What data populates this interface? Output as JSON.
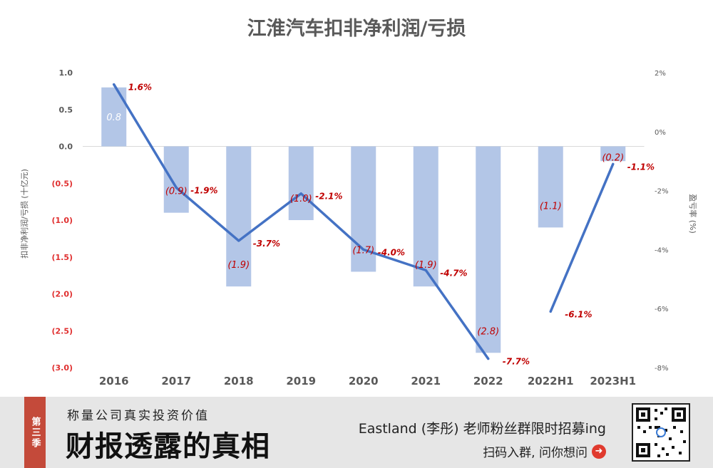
{
  "chart_data": {
    "type": "bar",
    "title": "江淮汽车扣非净利润/亏损",
    "categories": [
      "2016",
      "2017",
      "2018",
      "2019",
      "2020",
      "2021",
      "2022",
      "2022H1",
      "2023H1"
    ],
    "series": [
      {
        "name": "扣非净利润/亏损 (十亿元)",
        "type": "bar",
        "axis": "left",
        "values": [
          0.8,
          -0.9,
          -1.9,
          -1.0,
          -1.7,
          -1.9,
          -2.8,
          -1.1,
          -0.2
        ],
        "labels": [
          "0.8",
          "(0.9)",
          "(1.9)",
          "(1.0)",
          "(1.7)",
          "(1.9)",
          "(2.8)",
          "(1.1)",
          "(0.2)"
        ],
        "color": "#b3c6e7"
      },
      {
        "name": "盈亏率 (%)",
        "type": "line",
        "axis": "right",
        "values": [
          1.6,
          -1.9,
          -3.7,
          -2.1,
          -4.0,
          -4.7,
          -7.7,
          -6.1,
          -1.1
        ],
        "labels": [
          "1.6%",
          "-1.9%",
          "-3.7%",
          "-2.1%",
          "-4.0%",
          "-4.7%",
          "-7.7%",
          "-6.1%",
          "-1.1%"
        ],
        "color": "#4472c4",
        "segments": [
          [
            0,
            6
          ],
          [
            7,
            8
          ]
        ]
      }
    ],
    "ylabel": "扣非净利润/亏损 (十亿元)",
    "y2label": "盈亏率 (%)",
    "ylim": [
      -3.0,
      1.0
    ],
    "y2lim": [
      -8,
      2
    ],
    "yticks": [
      "1.0",
      "0.5",
      "0.0",
      "(0.5)",
      "(1.0)",
      "(1.5)",
      "(2.0)",
      "(2.5)",
      "(3.0)"
    ],
    "y2ticks": [
      "2%",
      "0%",
      "-2%",
      "-4%",
      "-6%",
      "-8%"
    ],
    "negative_tick_color": "#e03030",
    "label_color": "#c00000",
    "grid": false
  },
  "footer": {
    "season_tag": "第三季",
    "subtitle": "称量公司真实投资价值",
    "main_title": "财报透露的真相",
    "recruit": "Eastland (李彤) 老师粉丝群限时招募ing",
    "cta": "扫码入群, 问你想问"
  }
}
